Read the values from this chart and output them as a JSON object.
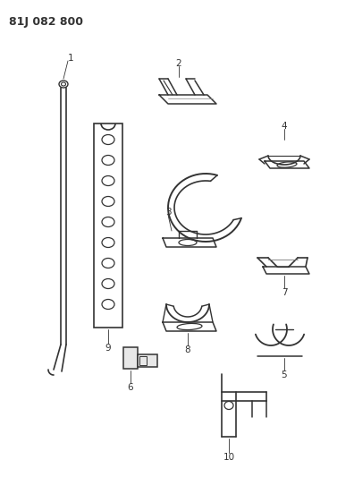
{
  "title": "81J 082 800",
  "bg_color": "#ffffff",
  "line_color": "#333333",
  "figsize": [
    3.96,
    5.33
  ],
  "dpi": 100
}
